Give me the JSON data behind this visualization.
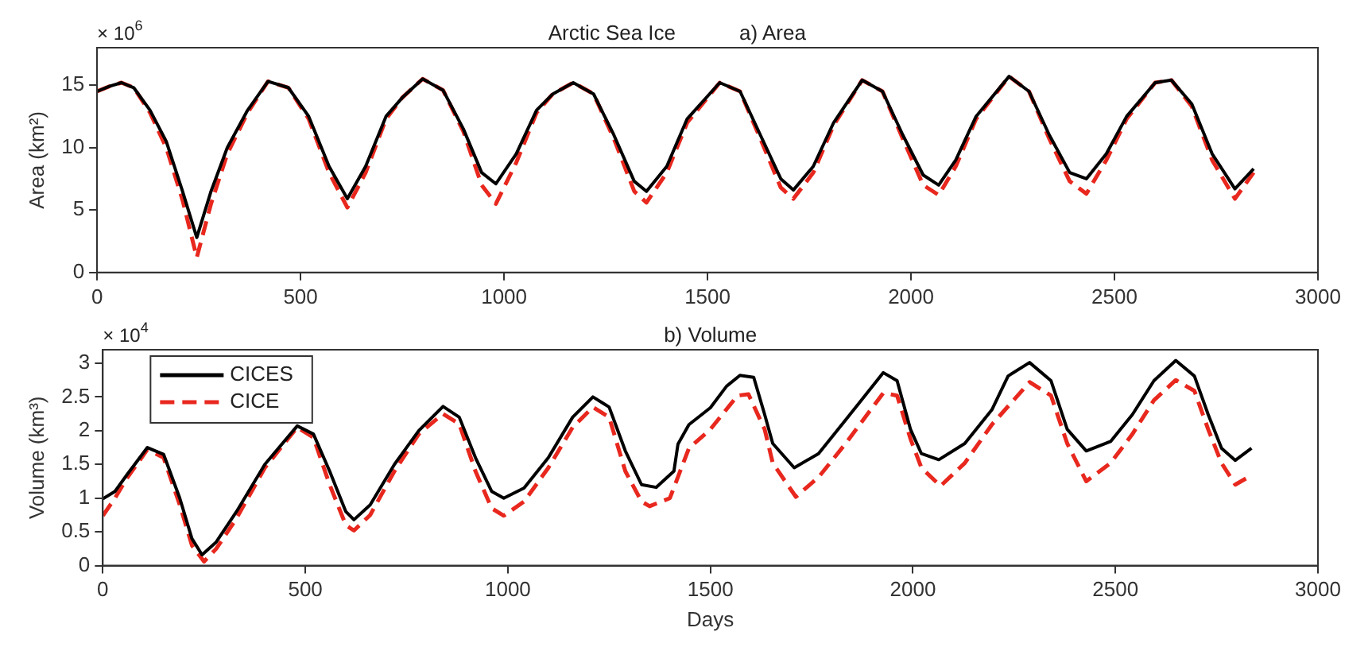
{
  "chart_data": [
    {
      "type": "line",
      "title": "Arctic Sea Ice",
      "subtitle": "a) Area",
      "ylabel": "Area (km²)",
      "annotations": [
        "× 10$^{6}$"
      ],
      "xlim": [
        0,
        3000
      ],
      "xticks": [
        0,
        500,
        1000,
        1500,
        2000,
        2500,
        3000
      ],
      "ylim": [
        0,
        18
      ],
      "yticks": [
        0,
        5,
        10,
        15
      ],
      "grid": false,
      "marker": "none",
      "x": [
        0,
        30,
        60,
        90,
        130,
        170,
        210,
        245,
        280,
        320,
        370,
        420,
        470,
        520,
        570,
        615,
        660,
        710,
        750,
        800,
        850,
        900,
        945,
        980,
        1030,
        1080,
        1120,
        1170,
        1220,
        1270,
        1320,
        1350,
        1400,
        1450,
        1530,
        1580,
        1630,
        1680,
        1711,
        1760,
        1810,
        1880,
        1930,
        1980,
        2030,
        2068,
        2110,
        2160,
        2241,
        2290,
        2340,
        2390,
        2431,
        2480,
        2530,
        2600,
        2640,
        2690,
        2740,
        2796,
        2842
      ],
      "series": [
        {
          "color": "#000000",
          "line_style": "solid",
          "values": [
            14.5,
            14.9,
            15.2,
            14.8,
            13,
            10.5,
            6.5,
            2.8,
            6.5,
            10,
            13,
            15.3,
            14.8,
            12.5,
            8.5,
            5.9,
            8.5,
            12.5,
            14,
            15.5,
            14.6,
            11.5,
            8,
            7.1,
            9.5,
            13,
            14.3,
            15.2,
            14.3,
            11,
            7.3,
            6.5,
            8.5,
            12.3,
            15.2,
            14.5,
            11,
            7.5,
            6.6,
            8.5,
            12,
            15.4,
            14.5,
            11,
            7.8,
            7.0,
            9,
            12.5,
            15.7,
            14.5,
            11,
            8,
            7.5,
            9.5,
            12.5,
            15.2,
            15.4,
            13.5,
            9.5,
            6.7,
            8.3
          ]
        },
        {
          "color": "#e8281e",
          "line_style": "dashed",
          "values": [
            14.5,
            14.9,
            15.2,
            14.8,
            12.8,
            10,
            5.8,
            1.2,
            5.5,
            9.5,
            12.8,
            15.3,
            14.8,
            12.3,
            8,
            5.2,
            8,
            12.3,
            14,
            15.5,
            14.6,
            11.3,
            7,
            5.5,
            8.8,
            12.8,
            14.3,
            15.2,
            14.3,
            10.7,
            6.5,
            5.6,
            8,
            12,
            15.2,
            14.5,
            10.7,
            6.8,
            5.9,
            8,
            11.8,
            15.4,
            14.5,
            10.7,
            7,
            6.2,
            8.5,
            12.3,
            15.7,
            14.5,
            10.7,
            7.3,
            6.3,
            9,
            12.3,
            15.2,
            15.4,
            13.3,
            9,
            5.9,
            8.0
          ]
        }
      ]
    },
    {
      "type": "line",
      "title": "b) Volume",
      "xlabel": "Days",
      "ylabel": "Volume (km³)",
      "annotations": [
        "× 10$^{4}$"
      ],
      "xlim": [
        0,
        3000
      ],
      "xticks": [
        0,
        500,
        1000,
        1500,
        2000,
        2500,
        3000
      ],
      "ylim": [
        0,
        3.2
      ],
      "yticks": [
        0,
        0.5,
        1,
        1.5,
        2,
        2.5,
        3
      ],
      "grid": false,
      "marker": "none",
      "legend": "top left",
      "series": [
        {
          "name": "CICES",
          "color": "#000000",
          "line_style": "solid",
          "x": [
            0,
            30,
            60,
            110,
            150,
            190,
            220,
            245,
            280,
            330,
            400,
            480,
            520,
            560,
            600,
            620,
            660,
            720,
            780,
            840,
            880,
            920,
            960,
            990,
            1040,
            1100,
            1160,
            1210,
            1250,
            1290,
            1330,
            1366,
            1410,
            1420,
            1447,
            1500,
            1540,
            1573,
            1607,
            1634,
            1654,
            1707,
            1767,
            1834,
            1927,
            1961,
            1994,
            2021,
            2064,
            2128,
            2195,
            2235,
            2288,
            2341,
            2381,
            2428,
            2488,
            2542,
            2595,
            2649,
            2695,
            2729,
            2762,
            2796,
            2836
          ],
          "values": [
            0.99,
            1.1,
            1.35,
            1.75,
            1.65,
            1.0,
            0.4,
            0.16,
            0.35,
            0.8,
            1.5,
            2.07,
            1.95,
            1.4,
            0.8,
            0.68,
            0.9,
            1.5,
            2.0,
            2.36,
            2.2,
            1.6,
            1.1,
            1.0,
            1.15,
            1.6,
            2.2,
            2.5,
            2.35,
            1.7,
            1.2,
            1.16,
            1.4,
            1.8,
            2.09,
            2.34,
            2.66,
            2.82,
            2.79,
            2.24,
            1.81,
            1.45,
            1.66,
            2.16,
            2.86,
            2.74,
            2.02,
            1.66,
            1.57,
            1.81,
            2.31,
            2.81,
            3.01,
            2.74,
            2.02,
            1.7,
            1.84,
            2.24,
            2.74,
            3.04,
            2.81,
            2.24,
            1.74,
            1.56,
            1.74
          ]
        },
        {
          "name": "CICE",
          "color": "#e8281e",
          "line_style": "dashed",
          "x": [
            0,
            30,
            60,
            110,
            150,
            190,
            220,
            250,
            280,
            330,
            400,
            480,
            520,
            560,
            600,
            620,
            660,
            720,
            780,
            840,
            880,
            920,
            960,
            990,
            1040,
            1100,
            1160,
            1210,
            1250,
            1290,
            1330,
            1350,
            1400,
            1447,
            1500,
            1567,
            1594,
            1634,
            1654,
            1711,
            1767,
            1834,
            1927,
            1961,
            1994,
            2021,
            2068,
            2128,
            2195,
            2288,
            2341,
            2381,
            2428,
            2488,
            2542,
            2595,
            2649,
            2695,
            2729,
            2762,
            2796,
            2836
          ],
          "values": [
            0.74,
            1.0,
            1.3,
            1.72,
            1.6,
            0.9,
            0.3,
            0.06,
            0.25,
            0.7,
            1.45,
            2.05,
            1.9,
            1.2,
            0.6,
            0.52,
            0.75,
            1.4,
            1.95,
            2.25,
            2.1,
            1.4,
            0.85,
            0.74,
            0.95,
            1.45,
            2.05,
            2.35,
            2.2,
            1.4,
            0.95,
            0.88,
            1.0,
            1.74,
            2.02,
            2.52,
            2.54,
            2.02,
            1.52,
            1.02,
            1.31,
            1.81,
            2.56,
            2.52,
            1.88,
            1.45,
            1.18,
            1.52,
            2.09,
            2.72,
            2.52,
            1.81,
            1.25,
            1.52,
            1.95,
            2.45,
            2.75,
            2.59,
            2.02,
            1.52,
            1.2,
            1.34
          ]
        }
      ]
    }
  ]
}
